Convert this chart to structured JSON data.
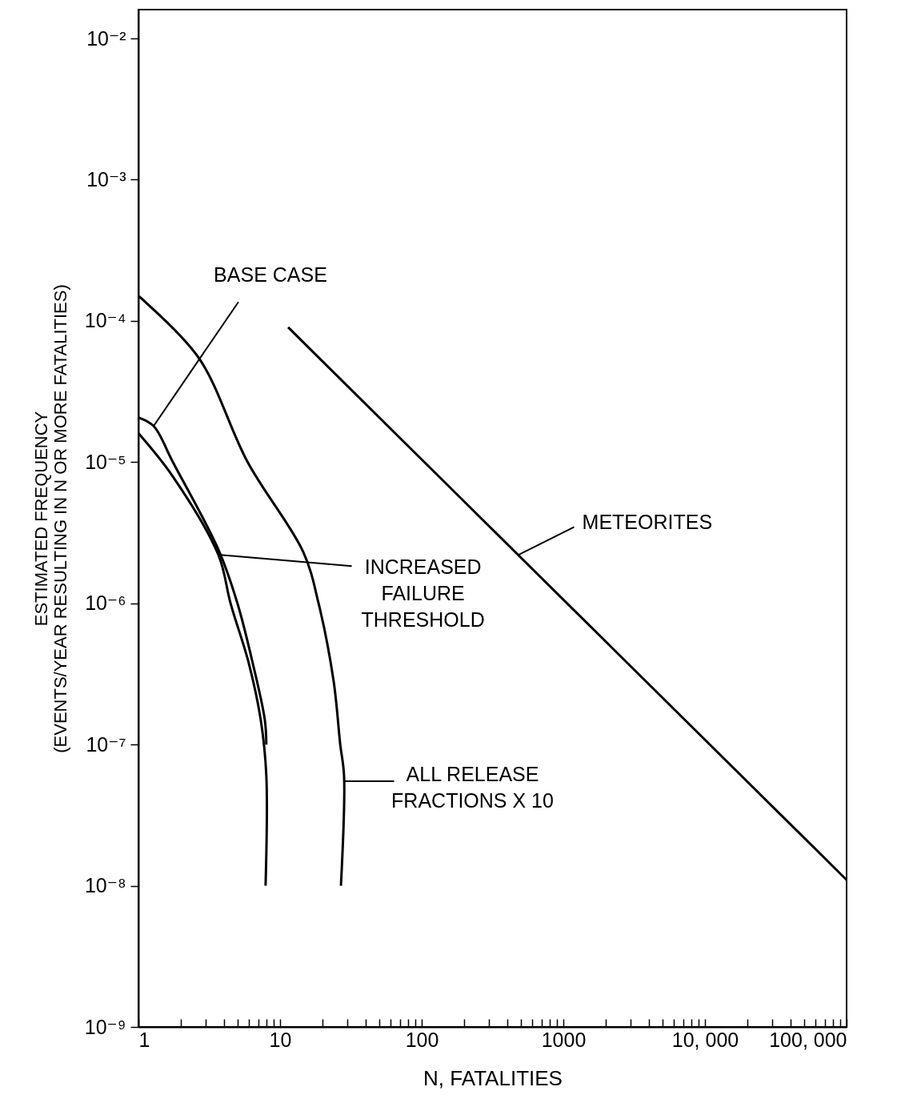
{
  "chart_data": {
    "type": "line",
    "xlabel": "N, FATALITIES",
    "ylabel": "ESTIMATED FREQUENCY\n(EVENTS/YEAR RESULTING IN N OR MORE FATALITIES)",
    "log": "xy",
    "grid": false,
    "marker": "none",
    "line_style": "solid",
    "xlim": [
      1,
      100000
    ],
    "ylim": [
      1e-09,
      0.016
    ],
    "xticks": [
      1,
      {
        "value": 2,
        "label": null
      },
      {
        "value": 3,
        "label": null
      },
      {
        "value": 4,
        "label": null
      },
      {
        "value": 5,
        "label": null
      },
      {
        "value": 6,
        "label": null
      },
      {
        "value": 7,
        "label": null
      },
      {
        "value": 8,
        "label": null
      },
      {
        "value": 9,
        "label": null
      },
      10,
      {
        "value": 20,
        "label": null
      },
      {
        "value": 30,
        "label": null
      },
      {
        "value": 40,
        "label": null
      },
      {
        "value": 50,
        "label": null
      },
      {
        "value": 60,
        "label": null
      },
      {
        "value": 70,
        "label": null
      },
      {
        "value": 80,
        "label": null
      },
      {
        "value": 90,
        "label": null
      },
      100,
      {
        "value": 200,
        "label": null
      },
      {
        "value": 300,
        "label": null
      },
      {
        "value": 400,
        "label": null
      },
      {
        "value": 500,
        "label": null
      },
      {
        "value": 600,
        "label": null
      },
      {
        "value": 700,
        "label": null
      },
      {
        "value": 800,
        "label": null
      },
      {
        "value": 900,
        "label": null
      },
      1000,
      {
        "value": 2000,
        "label": null
      },
      {
        "value": 3000,
        "label": null
      },
      {
        "value": 4000,
        "label": null
      },
      {
        "value": 5000,
        "label": null
      },
      {
        "value": 6000,
        "label": null
      },
      {
        "value": 7000,
        "label": null
      },
      {
        "value": 8000,
        "label": null
      },
      {
        "value": 9000,
        "label": null
      },
      {
        "value": 10000,
        "label": "10, 000"
      },
      {
        "value": 20000,
        "label": null
      },
      {
        "value": 30000,
        "label": null
      },
      {
        "value": 40000,
        "label": null
      },
      {
        "value": 50000,
        "label": null
      },
      {
        "value": 60000,
        "label": null
      },
      {
        "value": 70000,
        "label": null
      },
      {
        "value": 80000,
        "label": null
      },
      {
        "value": 90000,
        "label": null
      },
      {
        "value": 100000,
        "label": "100, 000"
      }
    ],
    "yticks": [
      {
        "value": 1e-09,
        "label": "10⁻⁹"
      },
      {
        "value": 1e-08,
        "label": "10⁻⁸"
      },
      {
        "value": 1e-07,
        "label": "10⁻⁷"
      },
      {
        "value": 1e-06,
        "label": "10⁻⁶"
      },
      {
        "value": 1e-05,
        "label": "10⁻⁵"
      },
      {
        "value": 0.0001,
        "label": "10⁻⁴"
      },
      {
        "value": 0.001,
        "label": "10⁻³"
      },
      {
        "value": 0.01,
        "label": "10⁻²"
      }
    ],
    "series": [
      {
        "color": "#000000",
        "x": [
          1,
          1.28,
          1.75,
          3.67,
          5.0,
          6.4,
          7.8,
          8.0
        ],
        "values": [
          2.07e-05,
          1.8e-05,
          1e-05,
          2.4e-06,
          1e-06,
          3.8e-07,
          1.5e-07,
          1e-07
        ]
      },
      {
        "color": "#000000",
        "x": [
          1,
          1.75,
          3.67,
          4.47,
          6.0,
          7.3,
          8.0,
          7.9
        ],
        "values": [
          1.6e-05,
          7.9e-06,
          2.2e-06,
          1e-06,
          3.8e-07,
          1.5e-07,
          6e-08,
          1e-08
        ]
      },
      {
        "color": "#000000",
        "x": [
          1,
          1.12,
          2.69,
          5.9,
          14.6,
          18.7,
          23.9,
          26.6,
          28.3,
          26.9
        ],
        "values": [
          0.00015,
          0.000136,
          5.4e-05,
          1e-05,
          2.3e-06,
          1e-06,
          2.8e-07,
          1e-07,
          6e-08,
          1e-08
        ]
      },
      {
        "color": "#000000",
        "x": [
          11.4,
          100000
        ],
        "values": [
          9e-05,
          1.1e-08
        ]
      }
    ],
    "annotations": [
      {
        "text": "BASE CASE",
        "x": 1.28,
        "y": 1.8e-05
      },
      {
        "text": "INCREASED\nFAILURE\nTHRESHOLD",
        "x": 3.8,
        "y": 2.2e-06
      },
      {
        "text": "ALL RELEASE\nFRACTIONS X 10",
        "x": 28.5,
        "y": 5.5e-08
      },
      {
        "text": "METEORITES",
        "x": 480,
        "y": 2.2e-06
      }
    ]
  }
}
